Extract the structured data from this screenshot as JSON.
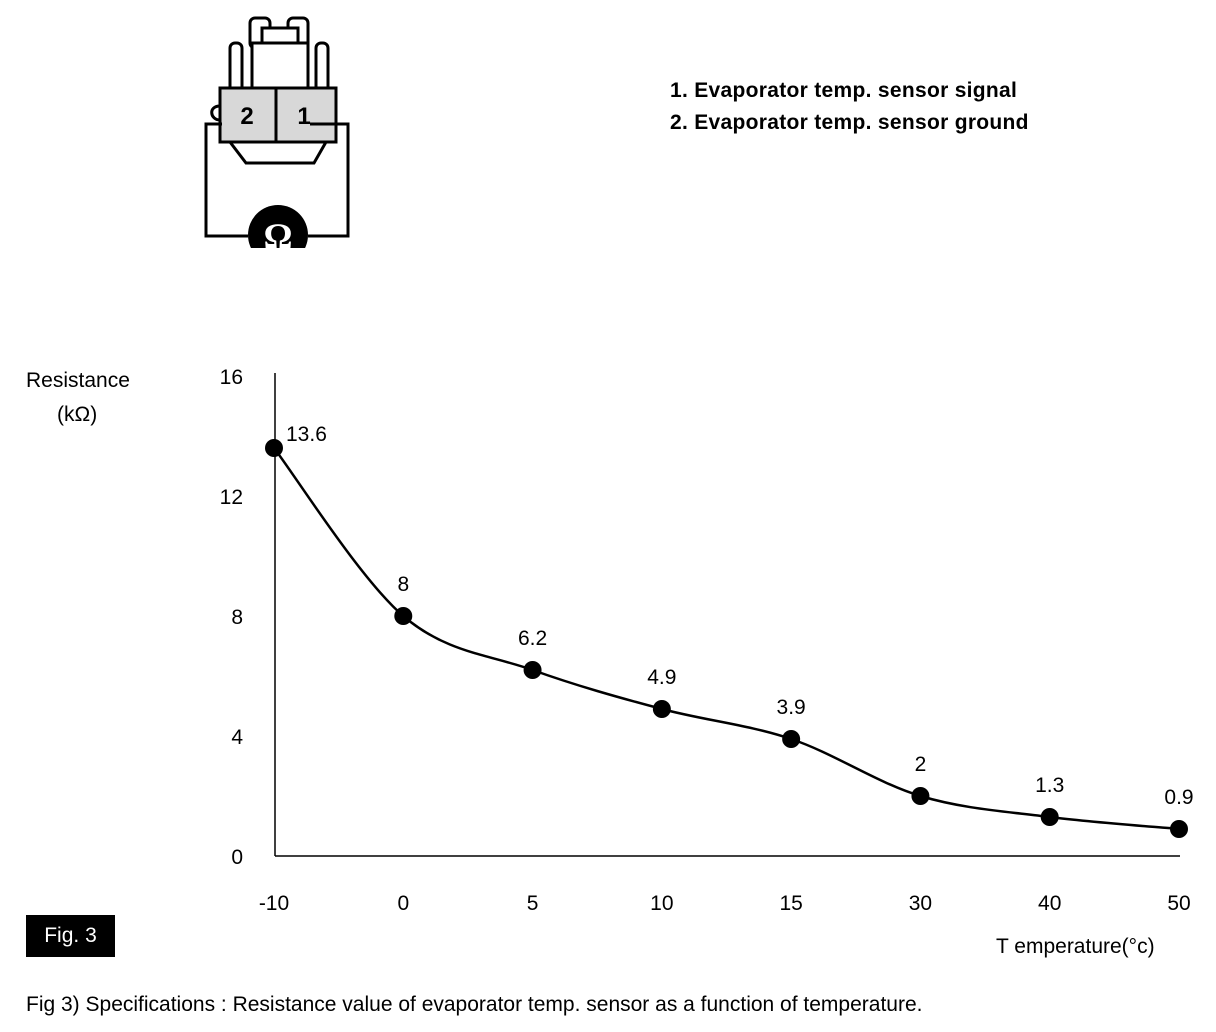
{
  "legend": {
    "item1": "1. Evaporator temp. sensor signal",
    "item2": "2. Evaporator temp. sensor ground"
  },
  "connector": {
    "pin_left": "2",
    "pin_right": "1",
    "meter_symbol": "Ω",
    "icon": "ohmmeter-connector-icon"
  },
  "chart_data": {
    "type": "line",
    "title": "",
    "xlabel": "T emperature(°c)",
    "ylabel_line1": "Resistance",
    "ylabel_line2": "(kΩ)",
    "categories": [
      "-10",
      "0",
      "5",
      "10",
      "15",
      "30",
      "40",
      "50"
    ],
    "x": [
      -10,
      0,
      5,
      10,
      15,
      30,
      40,
      50
    ],
    "values": [
      13.6,
      8,
      6.2,
      4.9,
      3.9,
      2,
      1.3,
      0.9
    ],
    "value_labels": [
      "13.6",
      "8",
      "6.2",
      "4.9",
      "3.9",
      "2",
      "1.3",
      "0.9"
    ],
    "yticks": [
      "0",
      "4",
      "8",
      "12",
      "16"
    ],
    "ylim": [
      0,
      16
    ],
    "x_axis_note": "categorical (evenly spaced)",
    "grid": false,
    "line_color": "#000000",
    "marker_color": "#000000"
  },
  "badge": "Fig. 3",
  "caption": "Fig 3) Specifications : Resistance value of evaporator temp. sensor as a function of temperature."
}
